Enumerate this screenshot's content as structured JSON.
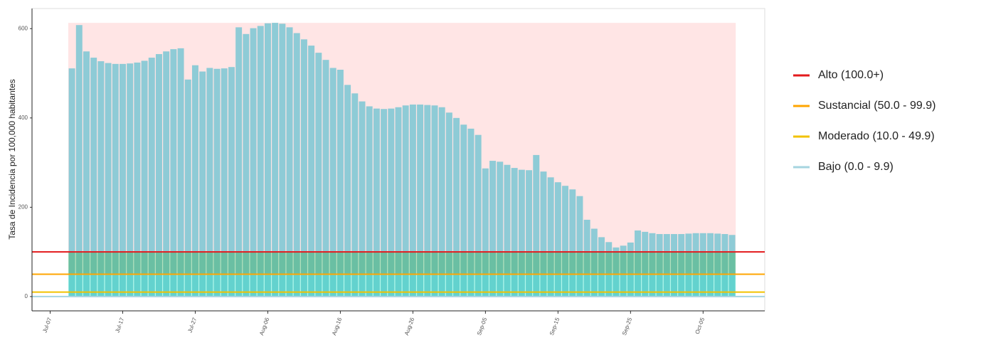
{
  "chart_data": {
    "type": "bar",
    "ylabel": "Tasa de Incidencia por 100,000 habitantes",
    "categories": [
      null,
      null,
      "Jul-07",
      null,
      null,
      null,
      null,
      null,
      null,
      null,
      null,
      null,
      "Jul-17",
      null,
      null,
      null,
      null,
      null,
      null,
      null,
      null,
      null,
      "Jul-27",
      null,
      null,
      null,
      null,
      null,
      null,
      null,
      null,
      null,
      "Aug-06",
      null,
      null,
      null,
      null,
      null,
      null,
      null,
      null,
      null,
      "Aug-16",
      null,
      null,
      null,
      null,
      null,
      null,
      null,
      null,
      null,
      "Aug-26",
      null,
      null,
      null,
      null,
      null,
      null,
      null,
      null,
      null,
      "Sep-05",
      null,
      null,
      null,
      null,
      null,
      null,
      null,
      null,
      null,
      "Sep-15",
      null,
      null,
      null,
      null,
      null,
      null,
      null,
      null,
      null,
      "Sep-25",
      null,
      null,
      null,
      null,
      null,
      null,
      null,
      null,
      null,
      "Oct-05",
      null,
      null,
      null,
      null,
      null,
      null,
      null,
      null
    ],
    "values": [
      null,
      null,
      null,
      null,
      null,
      511,
      608,
      549,
      535,
      527,
      523,
      521,
      521,
      522,
      524,
      528,
      535,
      543,
      549,
      554,
      556,
      486,
      518,
      504,
      512,
      510,
      511,
      514,
      603,
      588,
      601,
      606,
      612,
      613,
      611,
      603,
      590,
      576,
      562,
      546,
      530,
      512,
      508,
      474,
      455,
      437,
      426,
      421,
      420,
      421,
      424,
      428,
      430,
      430,
      429,
      428,
      424,
      412,
      400,
      385,
      376,
      362,
      287,
      304,
      302,
      295,
      288,
      284,
      283,
      317,
      280,
      267,
      256,
      248,
      240,
      225,
      172,
      152,
      133,
      122,
      110,
      114,
      121,
      148,
      145,
      142,
      140,
      140,
      140,
      140,
      141,
      142,
      142,
      142,
      141,
      140,
      138,
      null,
      null,
      null,
      null
    ],
    "color": "#8ecbd6",
    "ylim": [
      -32,
      645
    ],
    "yticks": [
      0,
      200,
      400,
      600
    ],
    "thresholds": [
      {
        "name": "Alto (100.0+)",
        "color": "#e31a1c",
        "value": 100
      },
      {
        "name": "Sustancial (50.0 - 99.9)",
        "color": "#ffa500",
        "value": 50
      },
      {
        "name": "Moderado (10.0 - 49.9)",
        "color": "#f2c200",
        "value": 10
      },
      {
        "name": "Bajo (0.0 - 9.9)",
        "color": "#a6d4e0",
        "value": 0
      }
    ],
    "legend": "right"
  }
}
